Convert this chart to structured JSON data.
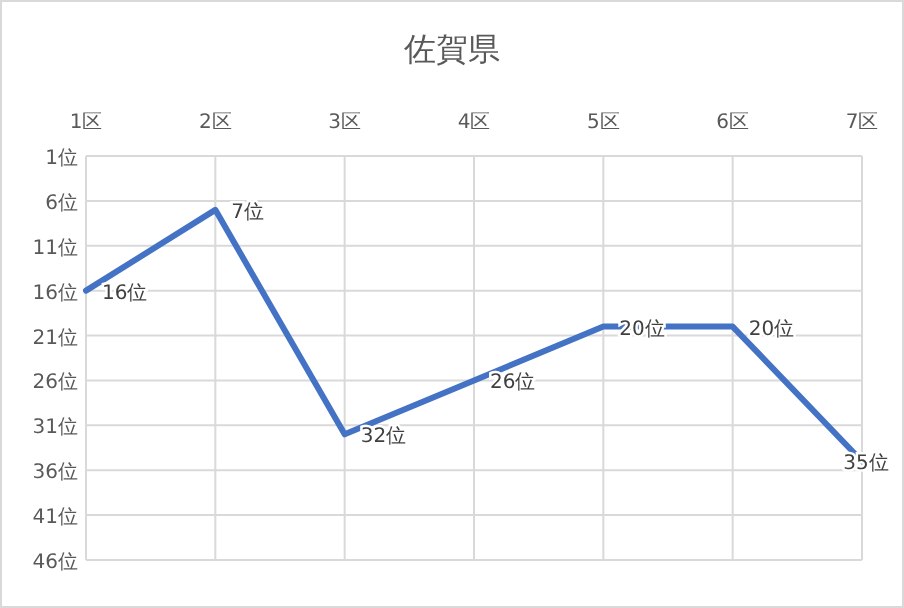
{
  "chart_data": {
    "type": "line",
    "title": "佐賀県",
    "categories": [
      "1区",
      "2区",
      "3区",
      "4区",
      "5区",
      "6区",
      "7区"
    ],
    "series": [
      {
        "color": "#4472c4",
        "values": [
          16,
          7,
          32,
          26,
          20,
          20,
          35
        ],
        "value_labels": [
          "16位",
          "7位",
          "32位",
          "26位",
          "20位",
          "20位",
          "35位"
        ]
      }
    ],
    "ylim": [
      46,
      1
    ],
    "yticks": [
      {
        "value": 1,
        "label": "1位"
      },
      {
        "value": 6,
        "label": "6位"
      },
      {
        "value": 11,
        "label": "11位"
      },
      {
        "value": 16,
        "label": "16位"
      },
      {
        "value": 21,
        "label": "21位"
      },
      {
        "value": 26,
        "label": "26位"
      },
      {
        "value": 31,
        "label": "31位"
      },
      {
        "value": 36,
        "label": "36位"
      },
      {
        "value": 41,
        "label": "41位"
      },
      {
        "value": 46,
        "label": "46位"
      }
    ],
    "grid": true,
    "marker": "none",
    "line_style": "solid"
  }
}
